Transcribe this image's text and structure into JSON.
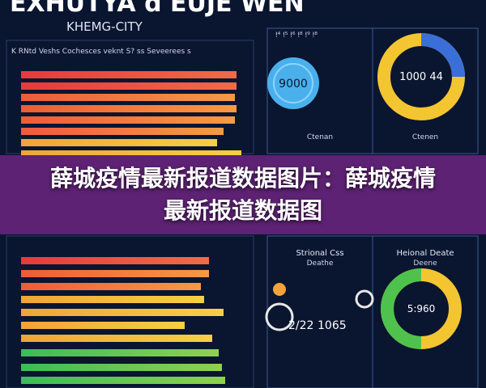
{
  "header": {
    "title": "EXHUTYA  d  EUJE  WEN",
    "subtitle": "KHEMG-CITY"
  },
  "left_panel": {
    "top_heading": "K RNtd Veshs  Cochesces veknt S? ss Seveerees s"
  },
  "right_panel": {
    "top_heading": "ǃ⁴ ǃ⁵ ǃ⁶ ǃ⁸ ǃ⁹ ǃ⁸",
    "bubble_value": "9000",
    "donut_value": "1000 44",
    "caption_left": "Ctenan",
    "caption_right": "Ctenen",
    "lower_heading_left": "Strional Css",
    "lower_sub_left": "Deathe",
    "lower_heading_right": "Heional Deate",
    "lower_sub_right": "Deene",
    "gauge_value": "1065",
    "gauge_prefix": "2/22",
    "lower_donut_value": "5:960"
  },
  "banner": {
    "title": "薛城疫情最新报道数据图片：薛城疫情最新报道数据图"
  }
}
